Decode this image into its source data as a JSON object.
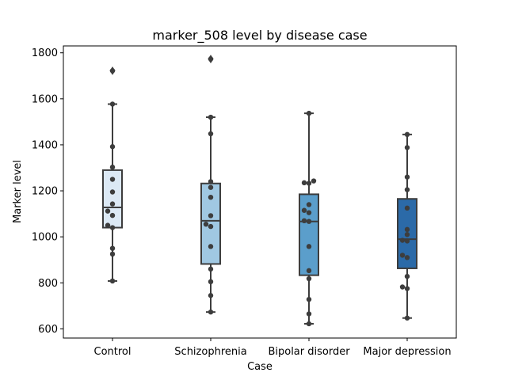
{
  "chart_data": {
    "type": "box",
    "title": "marker_508 level by disease case",
    "xlabel": "Case",
    "ylabel": "Marker level",
    "ylim": [
      560,
      1830
    ],
    "yticks": [
      600,
      800,
      1000,
      1200,
      1400,
      1600,
      1800
    ],
    "categories": [
      "Control",
      "Schizophrenia",
      "Bipolar disorder",
      "Major depression"
    ],
    "colors": [
      "#dce9f5",
      "#a0c8e2",
      "#5b9ecb",
      "#2b6aa8"
    ],
    "boxes": [
      {
        "name": "Control",
        "q1": 1040,
        "median": 1128,
        "q3": 1290,
        "whisker_low": 808,
        "whisker_high": 1577,
        "outliers": [
          1722
        ]
      },
      {
        "name": "Schizophrenia",
        "q1": 882,
        "median": 1070,
        "q3": 1232,
        "whisker_low": 673,
        "whisker_high": 1520,
        "outliers": [
          1773
        ]
      },
      {
        "name": "Bipolar disorder",
        "q1": 833,
        "median": 1067,
        "q3": 1185,
        "whisker_low": 622,
        "whisker_high": 1537,
        "outliers": []
      },
      {
        "name": "Major depression",
        "q1": 863,
        "median": 990,
        "q3": 1165,
        "whisker_low": 647,
        "whisker_high": 1445,
        "outliers": []
      }
    ],
    "points": [
      {
        "category": "Control",
        "values": [
          1722,
          1577,
          1392,
          1303,
          1250,
          1195,
          1143,
          1112,
          1093,
          1050,
          1040,
          950,
          925,
          808
        ]
      },
      {
        "category": "Schizophrenia",
        "values": [
          1773,
          1520,
          1448,
          1240,
          1215,
          1172,
          1092,
          1055,
          1045,
          958,
          860,
          805,
          745,
          673
        ]
      },
      {
        "category": "Bipolar disorder",
        "values": [
          1537,
          1243,
          1235,
          1233,
          1140,
          1115,
          1105,
          1070,
          1067,
          958,
          853,
          818,
          728,
          665,
          622
        ]
      },
      {
        "category": "Major depression",
        "values": [
          1445,
          1388,
          1260,
          1205,
          1125,
          1032,
          1010,
          985,
          982,
          920,
          910,
          828,
          782,
          775,
          647
        ]
      }
    ]
  }
}
